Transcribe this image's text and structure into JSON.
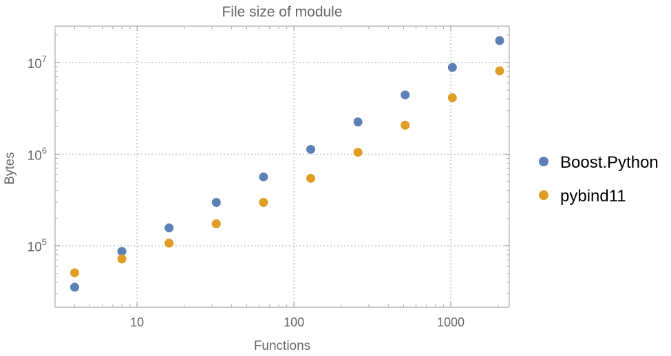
{
  "chart_data": {
    "type": "scatter",
    "title": "File size of module",
    "xlabel": "Functions",
    "ylabel": "Bytes",
    "x_scale": "log",
    "y_scale": "log",
    "xlim": [
      3,
      2360
    ],
    "ylim": [
      21400,
      25000000
    ],
    "x_ticks": [
      {
        "value": 10,
        "label": "10"
      },
      {
        "value": 100,
        "label": "100"
      },
      {
        "value": 1000,
        "label": "1000"
      }
    ],
    "y_ticks": [
      {
        "value": 100000,
        "base": "10",
        "exp": "5"
      },
      {
        "value": 1000000,
        "base": "10",
        "exp": "6"
      },
      {
        "value": 10000000,
        "base": "10",
        "exp": "7"
      }
    ],
    "grid": true,
    "legend_position": "right",
    "x": [
      4,
      8,
      16,
      32,
      64,
      128,
      256,
      512,
      1024,
      2048
    ],
    "series": [
      {
        "name": "Boost.Python",
        "color": "#5e81b5",
        "values": [
          35400,
          87000,
          157000,
          298000,
          565000,
          1130000,
          2250000,
          4440000,
          8850000,
          17400000
        ]
      },
      {
        "name": "pybind11",
        "color": "#e19c24",
        "values": [
          50900,
          72000,
          107000,
          174000,
          298000,
          546000,
          1050000,
          2070000,
          4140000,
          8130000
        ]
      }
    ]
  }
}
